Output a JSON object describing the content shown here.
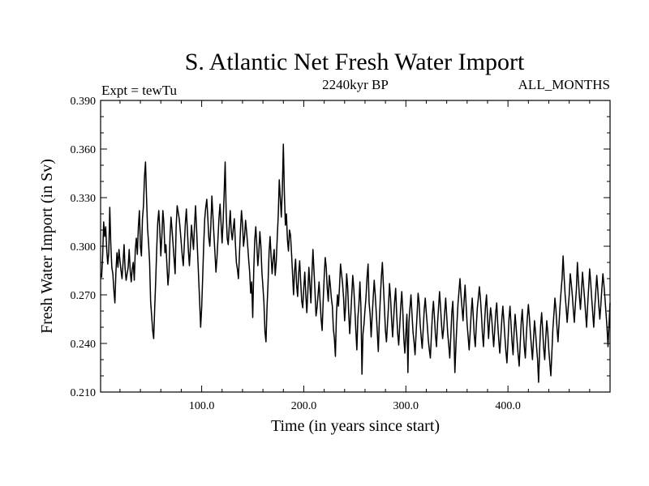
{
  "chart_data": {
    "type": "line",
    "title": "S. Atlantic Net Fresh Water Import",
    "subtitle": "2240kyr BP",
    "left_label": "Expt = tewTu",
    "right_label": "ALL_MONTHS",
    "xlabel": "Time (in years since start)",
    "ylabel": "Fresh Water Import (in Sv)",
    "xlim": [
      1,
      500
    ],
    "ylim": [
      0.21,
      0.39
    ],
    "xticks": [
      100,
      200,
      300,
      400
    ],
    "xtick_labels": [
      "100.0",
      "200.0",
      "300.0",
      "400.0"
    ],
    "yticks": [
      0.21,
      0.24,
      0.27,
      0.3,
      0.33,
      0.36,
      0.39
    ],
    "ytick_labels": [
      "0.210",
      "0.240",
      "0.270",
      "0.300",
      "0.330",
      "0.360",
      "0.390"
    ],
    "grid": false,
    "series": [
      {
        "name": "Net Fresh Water Import",
        "x_start": 1,
        "x_step": 1,
        "values": [
          0.283,
          0.281,
          0.294,
          0.315,
          0.306,
          0.312,
          0.298,
          0.289,
          0.296,
          0.324,
          0.301,
          0.287,
          0.283,
          0.273,
          0.265,
          0.284,
          0.296,
          0.287,
          0.298,
          0.291,
          0.285,
          0.28,
          0.29,
          0.301,
          0.286,
          0.279,
          0.283,
          0.287,
          0.298,
          0.285,
          0.278,
          0.286,
          0.29,
          0.279,
          0.298,
          0.305,
          0.295,
          0.312,
          0.322,
          0.3,
          0.294,
          0.317,
          0.325,
          0.343,
          0.352,
          0.33,
          0.311,
          0.302,
          0.29,
          0.266,
          0.257,
          0.248,
          0.243,
          0.262,
          0.279,
          0.299,
          0.315,
          0.322,
          0.31,
          0.294,
          0.306,
          0.322,
          0.314,
          0.296,
          0.301,
          0.288,
          0.276,
          0.284,
          0.306,
          0.318,
          0.31,
          0.301,
          0.292,
          0.283,
          0.312,
          0.325,
          0.321,
          0.317,
          0.31,
          0.302,
          0.294,
          0.288,
          0.301,
          0.314,
          0.323,
          0.31,
          0.297,
          0.288,
          0.3,
          0.313,
          0.305,
          0.298,
          0.313,
          0.325,
          0.311,
          0.296,
          0.281,
          0.266,
          0.25,
          0.262,
          0.281,
          0.301,
          0.317,
          0.324,
          0.329,
          0.318,
          0.305,
          0.3,
          0.313,
          0.331,
          0.319,
          0.307,
          0.296,
          0.284,
          0.293,
          0.305,
          0.318,
          0.326,
          0.314,
          0.302,
          0.315,
          0.332,
          0.352,
          0.321,
          0.305,
          0.301,
          0.312,
          0.322,
          0.309,
          0.304,
          0.311,
          0.317,
          0.302,
          0.29,
          0.286,
          0.28,
          0.295,
          0.31,
          0.322,
          0.314,
          0.3,
          0.306,
          0.316,
          0.309,
          0.301,
          0.292,
          0.284,
          0.271,
          0.278,
          0.256,
          0.285,
          0.304,
          0.312,
          0.301,
          0.288,
          0.296,
          0.309,
          0.3,
          0.284,
          0.275,
          0.265,
          0.247,
          0.241,
          0.262,
          0.277,
          0.296,
          0.306,
          0.294,
          0.283,
          0.292,
          0.298,
          0.282,
          0.29,
          0.305,
          0.319,
          0.341,
          0.33,
          0.318,
          0.335,
          0.363,
          0.333,
          0.313,
          0.32,
          0.304,
          0.297,
          0.31,
          0.307,
          0.296,
          0.283,
          0.27,
          0.285,
          0.292,
          0.276,
          0.269,
          0.283,
          0.291,
          0.278,
          0.266,
          0.262,
          0.274,
          0.284,
          0.27,
          0.259,
          0.272,
          0.287,
          0.276,
          0.265,
          0.283,
          0.298,
          0.285,
          0.272,
          0.257,
          0.262,
          0.27,
          0.278,
          0.266,
          0.255,
          0.248,
          0.266,
          0.281,
          0.293,
          0.287,
          0.274,
          0.266,
          0.282,
          0.276,
          0.268,
          0.263,
          0.249,
          0.243,
          0.232,
          0.258,
          0.27,
          0.263,
          0.275,
          0.289,
          0.283,
          0.277,
          0.268,
          0.254,
          0.263,
          0.283,
          0.275,
          0.259,
          0.246,
          0.257,
          0.27,
          0.282,
          0.274,
          0.262,
          0.248,
          0.236,
          0.256,
          0.264,
          0.278,
          0.262,
          0.221,
          0.246,
          0.252,
          0.261,
          0.269,
          0.281,
          0.289,
          0.265,
          0.258,
          0.244,
          0.257,
          0.268,
          0.279,
          0.27,
          0.259,
          0.247,
          0.235,
          0.254,
          0.268,
          0.281,
          0.29,
          0.276,
          0.262,
          0.248,
          0.241,
          0.252,
          0.263,
          0.277,
          0.268,
          0.255,
          0.244,
          0.255,
          0.266,
          0.274,
          0.258,
          0.246,
          0.239,
          0.251,
          0.263,
          0.272,
          0.26,
          0.243,
          0.234,
          0.246,
          0.258,
          0.222,
          0.253,
          0.262,
          0.27,
          0.258,
          0.247,
          0.241,
          0.233,
          0.246,
          0.258,
          0.271,
          0.265,
          0.252,
          0.244,
          0.237,
          0.249,
          0.261,
          0.268,
          0.259,
          0.251,
          0.242,
          0.236,
          0.231,
          0.245,
          0.258,
          0.266,
          0.256,
          0.245,
          0.238,
          0.252,
          0.262,
          0.272,
          0.262,
          0.251,
          0.243,
          0.249,
          0.259,
          0.268,
          0.257,
          0.246,
          0.239,
          0.231,
          0.244,
          0.259,
          0.266,
          0.247,
          0.222,
          0.238,
          0.252,
          0.264,
          0.272,
          0.28,
          0.27,
          0.262,
          0.254,
          0.266,
          0.276,
          0.264,
          0.252,
          0.244,
          0.236,
          0.247,
          0.259,
          0.268,
          0.257,
          0.245,
          0.238,
          0.251,
          0.262,
          0.268,
          0.275,
          0.268,
          0.258,
          0.246,
          0.238,
          0.252,
          0.263,
          0.27,
          0.256,
          0.243,
          0.254,
          0.262,
          0.256,
          0.247,
          0.238,
          0.248,
          0.259,
          0.265,
          0.252,
          0.242,
          0.234,
          0.244,
          0.255,
          0.263,
          0.254,
          0.244,
          0.235,
          0.228,
          0.241,
          0.255,
          0.263,
          0.252,
          0.241,
          0.233,
          0.247,
          0.258,
          0.25,
          0.241,
          0.233,
          0.226,
          0.24,
          0.253,
          0.261,
          0.249,
          0.238,
          0.231,
          0.245,
          0.256,
          0.264,
          0.256,
          0.246,
          0.238,
          0.23,
          0.242,
          0.254,
          0.247,
          0.238,
          0.23,
          0.216,
          0.236,
          0.251,
          0.259,
          0.248,
          0.237,
          0.23,
          0.243,
          0.254,
          0.247,
          0.236,
          0.228,
          0.22,
          0.234,
          0.249,
          0.258,
          0.268,
          0.261,
          0.25,
          0.241,
          0.252,
          0.263,
          0.272,
          0.28,
          0.294,
          0.281,
          0.27,
          0.262,
          0.253,
          0.262,
          0.27,
          0.283,
          0.277,
          0.27,
          0.261,
          0.253,
          0.264,
          0.273,
          0.29,
          0.279,
          0.269,
          0.261,
          0.272,
          0.284,
          0.276,
          0.268,
          0.259,
          0.25,
          0.263,
          0.274,
          0.286,
          0.278,
          0.268,
          0.259,
          0.25,
          0.262,
          0.272,
          0.282,
          0.273,
          0.263,
          0.255,
          0.264,
          0.274,
          0.283,
          0.276,
          0.268,
          0.259,
          0.25,
          0.238,
          0.252,
          0.265
        ]
      }
    ]
  }
}
